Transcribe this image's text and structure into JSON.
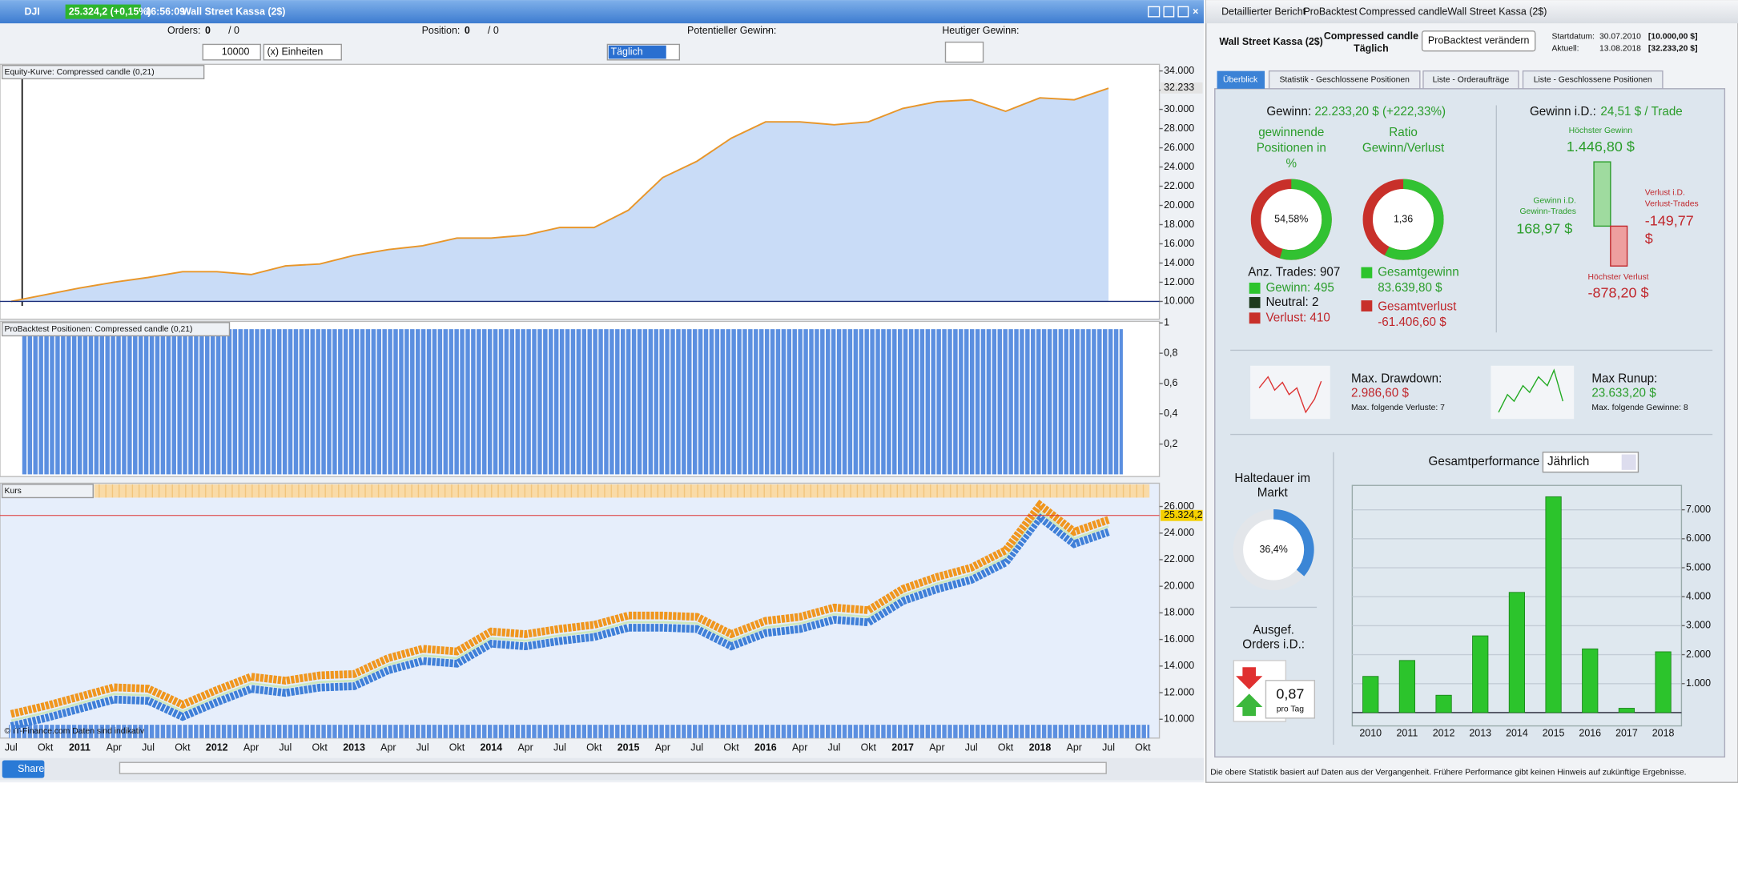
{
  "window_left": {
    "symbol": "DJI",
    "quote": "25.324,2 (+0,15%)",
    "time": "16:56:09",
    "instrument": "Wall Street Kassa (2$)"
  },
  "status_bar": {
    "orders_label": "Orders:",
    "orders": "0",
    "orders_total": "/ 0",
    "position_label": "Position:",
    "position": "0",
    "position_total": "/ 0",
    "potential_label": "Potentieller Gewinn:",
    "potential": "-",
    "today_label": "Heutiger Gewinn:",
    "today": "-"
  },
  "toolbar": {
    "quantity": "10000",
    "unit": "(x) Einheiten",
    "period": "Täglich"
  },
  "panels": {
    "equity": "Equity-Kurve: Compressed candle (0,21)",
    "positions": "ProBacktest Positionen: Compressed candle (0,21)",
    "price": "Kurs",
    "source": "© IT-Finance.com  Daten sind indikativ"
  },
  "bottom_bar": {
    "share": "Share"
  },
  "window_right": {
    "tabs_top": [
      "Detaillierter Bericht",
      "ProBacktest",
      "Compressed candle",
      "Wall Street Kassa (2$)"
    ],
    "instrument": "Wall Street Kassa (2$)",
    "strategy": "Compressed candle",
    "period": "Täglich",
    "button": "ProBacktest verändern",
    "start_label": "Startdatum:",
    "start_date": "30.07.2010",
    "start_value": "[10.000,00 $]",
    "current_label": "Aktuell:",
    "current_date": "13.08.2018",
    "current_value": "[32.233,20 $]"
  },
  "tabs": [
    "Überblick",
    "Statistik - Geschlossene Positionen",
    "Liste - Orderaufträge",
    "Liste - Geschlossene Positionen"
  ],
  "overview": {
    "profit_label": "Gewinn:",
    "profit": "22.233,20 $ (+222,33%)",
    "winning_label": [
      "gewinnende",
      "Positionen in",
      "%"
    ],
    "ratio_label": [
      "Ratio",
      "Gewinn/Verlust"
    ],
    "trades": "Anz. Trades: 907",
    "wins": "Gewinn: 495",
    "neutral": "Neutral: 2",
    "losses": "Verlust: 410",
    "gross_profit_label": "Gesamtgewinn",
    "gross_profit": "83.639,80 $",
    "gross_loss_label": "Gesamtverlust",
    "gross_loss": "-61.406,60 $",
    "avg_label": "Gewinn i.D.:",
    "avg": "24,51 $ / Trade",
    "best_label": "Höchster Gewinn",
    "best": "1.446,80 $",
    "avg_win_label": [
      "Gewinn i.D.",
      "Gewinn-Trades"
    ],
    "avg_win": "168,97 $",
    "avg_loss_label": [
      "Verlust i.D.",
      "Verlust-Trades"
    ],
    "avg_loss": [
      "-149,77",
      "$"
    ],
    "worst_label": "Höchster Verlust",
    "worst": "-878,20 $",
    "drawdown_label": "Max. Drawdown:",
    "drawdown": "2.986,60 $",
    "drawdown_note": "Max. folgende Verluste: 7",
    "runup_label": "Max Runup:",
    "runup": "23.633,20 $",
    "runup_note": "Max. folgende Gewinne: 8",
    "holding_label": [
      "Haltedauer im",
      "Markt"
    ],
    "orders_label": [
      "Ausgef.",
      "Orders i.D.:"
    ],
    "orders_per_day": "0,87",
    "orders_unit": "pro Tag",
    "performance_label": "Gesamtperformance",
    "performance_period": "Jährlich"
  },
  "footer": "Die obere Statistik basiert auf Daten aus der Vergangenheit. Frühere Performance gibt keinen Hinweis auf zukünftige Ergebnisse.",
  "chart_data": [
    {
      "type": "area",
      "title": "Equity-Kurve",
      "color": "#e8962a",
      "fill": "#c9dcf7",
      "values": [
        10000,
        10700,
        11400,
        12000,
        12500,
        13100,
        13100,
        12800,
        13700,
        13900,
        14800,
        15400,
        15800,
        16600,
        16600,
        16900,
        17700,
        17700,
        19500,
        22900,
        24600,
        27000,
        28700,
        28700,
        28400,
        28700,
        30100,
        30800,
        31000,
        29800,
        31200,
        31000,
        32200,
        null
      ],
      "ylim": [
        8150,
        34690
      ],
      "yticks": [
        {
          "value": 10000,
          "label": "10.000"
        },
        {
          "value": 12000,
          "label": "12.000"
        },
        {
          "value": 14000,
          "label": "14.000"
        },
        {
          "value": 16000,
          "label": "16.000"
        },
        {
          "value": 18000,
          "label": "18.000"
        },
        {
          "value": 20000,
          "label": "20.000"
        },
        {
          "value": 22000,
          "label": "22.000"
        },
        {
          "value": 24000,
          "label": "24.000"
        },
        {
          "value": 26000,
          "label": "26.000"
        },
        {
          "value": 28000,
          "label": "28.000"
        },
        {
          "value": 30000,
          "label": "30.000"
        },
        {
          "value": 32000,
          "label": "32.000"
        },
        {
          "value": 34000,
          "label": "34.000"
        }
      ],
      "last_value": 32233.2,
      "last_label": "32.233"
    },
    {
      "type": "strip",
      "title": "Positionen",
      "ylim": [
        0,
        1.01
      ],
      "yticks": [
        {
          "value": 0.2,
          "label": "0,2"
        },
        {
          "value": 0.4,
          "label": "0,4"
        },
        {
          "value": 0.6,
          "label": "0,6"
        },
        {
          "value": 0.8,
          "label": "0,8"
        },
        1
      ]
    },
    {
      "type": "line",
      "title": "Kurs",
      "colors": [
        "#f0961e",
        "#3f7fd8"
      ],
      "categories": [
        "Jul",
        "Okt",
        "2011",
        "Apr",
        "Jul",
        "Okt",
        "2012",
        "Apr",
        "Jul",
        "Okt",
        "2013",
        "Apr",
        "Jul",
        "Okt",
        "2014",
        "Apr",
        "Jul",
        "Okt",
        "2015",
        "Apr",
        "Jul",
        "Okt",
        "2016",
        "Apr",
        "Jul",
        "Okt",
        "2017",
        "Apr",
        "Jul",
        "Okt",
        "2018",
        "Apr",
        "Jul",
        "Okt"
      ],
      "values": [
        10400,
        11000,
        11700,
        12400,
        12300,
        11100,
        12200,
        13200,
        12900,
        13300,
        13400,
        14600,
        15300,
        15100,
        16600,
        16400,
        16800,
        17100,
        17800,
        17800,
        17700,
        16400,
        17400,
        17700,
        18400,
        18200,
        19800,
        20700,
        21400,
        22700,
        26100,
        24100,
        25000,
        null
      ],
      "ylim": [
        8667,
        26583
      ],
      "yticks": [
        {
          "value": 10000,
          "label": "10.000"
        },
        {
          "value": 12000,
          "label": "12.000"
        },
        {
          "value": 14000,
          "label": "14.000"
        },
        {
          "value": 16000,
          "label": "16.000"
        },
        {
          "value": 18000,
          "label": "18.000"
        },
        {
          "value": 20000,
          "label": "20.000"
        },
        {
          "value": 22000,
          "label": "22.000"
        },
        {
          "value": 24000,
          "label": "24.000"
        },
        {
          "value": 26000,
          "label": "26.000"
        }
      ],
      "last_value": 25324.2,
      "last_label": "25.324,2"
    },
    {
      "type": "bar",
      "title": "Gesamtperformance",
      "color": "#2cc42c",
      "categories": [
        "2010",
        "2011",
        "2012",
        "2013",
        "2014",
        "2015",
        "2016",
        "2017",
        "2018"
      ],
      "values": [
        1250,
        1800,
        600,
        2650,
        4150,
        7450,
        2200,
        150,
        2100
      ],
      "ylim": [
        0,
        7840
      ],
      "yticks": [
        {
          "value": 1000,
          "label": "1.000"
        },
        {
          "value": 2000,
          "label": "2.000"
        },
        {
          "value": 3000,
          "label": "3.000"
        },
        {
          "value": 4000,
          "label": "4.000"
        },
        {
          "value": 5000,
          "label": "5.000"
        },
        {
          "value": 6000,
          "label": "6.000"
        },
        {
          "value": 7000,
          "label": "7.000"
        }
      ],
      "grid": true
    },
    {
      "type": "donut",
      "kind": "percent",
      "colors": [
        "#32c232",
        "#c8302a"
      ],
      "values": [
        54.58
      ],
      "value_labels": [
        "54,58%"
      ]
    },
    {
      "type": "donut",
      "kind": "ratio",
      "colors": [
        "#32c232",
        "#c8302a"
      ],
      "values": [
        1.36
      ],
      "value_labels": [
        "1,36"
      ]
    },
    {
      "type": "donut",
      "kind": "percent",
      "colors": [
        "#3b86d6",
        "#e3e6ea"
      ],
      "values": [
        36.4
      ],
      "value_labels": [
        "36,4%"
      ]
    }
  ]
}
